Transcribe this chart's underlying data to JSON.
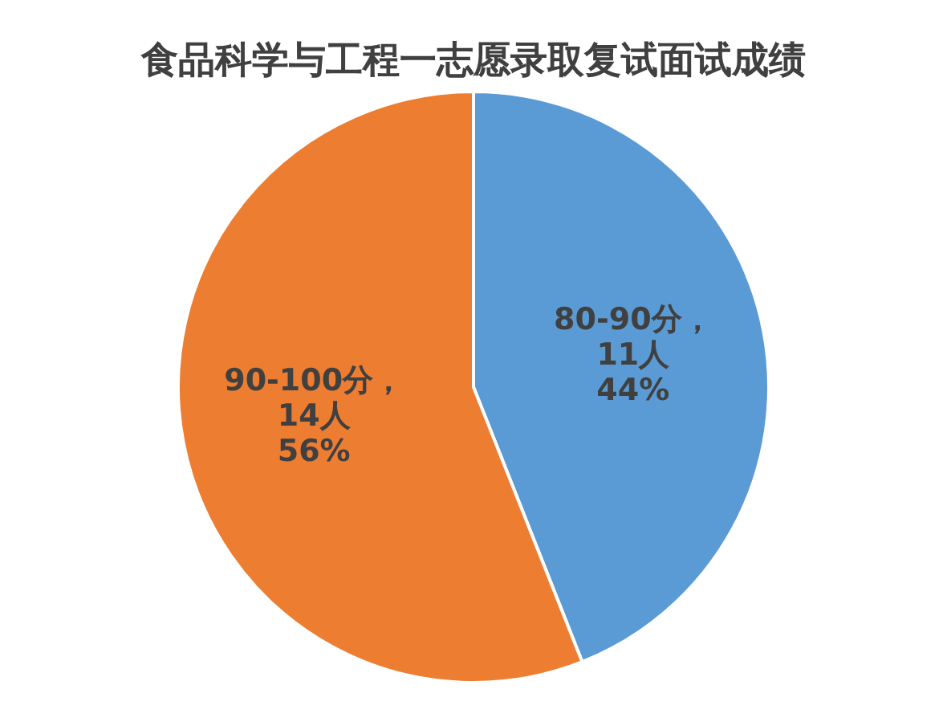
{
  "chart_data": {
    "type": "pie",
    "title": "食品科学与工程一志愿录取复试面试成绩",
    "categories": [
      "80-90分",
      "90-100分"
    ],
    "values": [
      11,
      14
    ],
    "colors": [
      "#5b9bd5",
      "#ed7d31"
    ],
    "value_labels": [
      "，\n11人\n44%",
      "，\n14人\n56%"
    ],
    "legend": false
  }
}
